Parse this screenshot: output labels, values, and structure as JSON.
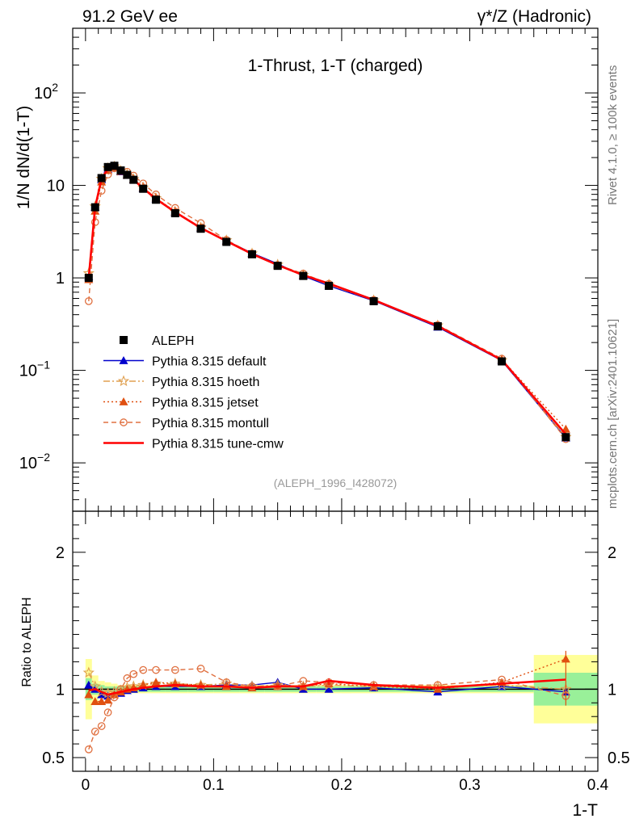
{
  "header": {
    "left": "91.2 GeV ee",
    "right": "γ*/Z (Hadronic)",
    "side_top": "Rivet 4.1.0, ≥ 100k events",
    "side_bottom": "mcplots.cern.ch [arXiv:2401.10621]"
  },
  "chart_data": {
    "type": "line",
    "title": "1-Thrust, 1-T (charged)",
    "analysis_id": "(ALEPH_1996_I428072)",
    "xlabel": "1-T",
    "ylabel": "1/N  dN/d(1-T)",
    "ratio_ylabel": "Ratio to ALEPH",
    "xlim": [
      -0.01,
      0.4
    ],
    "ylim": [
      0.003,
      500
    ],
    "yscale": "log",
    "ratio_ylim": [
      0.4,
      2.3
    ],
    "x_ticks": [
      "0",
      "0.1",
      "0.2",
      "0.3",
      "0.4"
    ],
    "ratio_ticks": [
      "0.5",
      "1",
      "2"
    ],
    "x": [
      0.0025,
      0.0075,
      0.0125,
      0.0175,
      0.0225,
      0.0275,
      0.0325,
      0.0375,
      0.045,
      0.055,
      0.07,
      0.09,
      0.11,
      0.13,
      0.15,
      0.17,
      0.19,
      0.225,
      0.275,
      0.325,
      0.375
    ],
    "data": {
      "name": "ALEPH",
      "values": [
        1.0,
        5.8,
        12.0,
        15.8,
        16.3,
        14.5,
        13.0,
        11.5,
        9.2,
        7.0,
        5.0,
        3.4,
        2.45,
        1.8,
        1.35,
        1.05,
        0.82,
        0.56,
        0.3,
        0.125,
        0.019
      ]
    },
    "series": [
      {
        "name": "Pythia 8.315 default",
        "color": "#0000cc",
        "style": "solid",
        "marker": "triangle",
        "ratio": [
          1.03,
          1.0,
          0.96,
          0.95,
          0.96,
          0.97,
          0.99,
          1.0,
          1.01,
          1.02,
          1.02,
          1.02,
          1.03,
          1.03,
          1.05,
          1.0,
          1.0,
          1.01,
          0.98,
          1.02,
          0.98
        ]
      },
      {
        "name": "Pythia 8.315 hoeth",
        "color": "#e0a050",
        "style": "dashdot",
        "marker": "star",
        "ratio": [
          1.12,
          1.02,
          0.98,
          0.97,
          0.98,
          0.99,
          1.01,
          1.02,
          1.03,
          1.04,
          1.04,
          1.03,
          1.04,
          1.02,
          1.03,
          1.02,
          1.03,
          1.02,
          1.02,
          1.03,
          1.0
        ]
      },
      {
        "name": "Pythia 8.315 jetset",
        "color": "#e05010",
        "style": "dotted",
        "marker": "triangle-filled",
        "ratio": [
          0.96,
          0.91,
          0.91,
          0.92,
          0.96,
          0.98,
          1.0,
          1.01,
          1.03,
          1.05,
          1.04,
          1.03,
          1.02,
          1.01,
          1.02,
          1.02,
          1.04,
          1.02,
          1.0,
          1.05,
          1.22
        ]
      },
      {
        "name": "Pythia 8.315 montull",
        "color": "#e07040",
        "style": "dashed",
        "marker": "circle-open",
        "ratio": [
          0.56,
          0.69,
          0.73,
          0.83,
          0.94,
          1.0,
          1.08,
          1.11,
          1.14,
          1.14,
          1.14,
          1.15,
          1.05,
          1.02,
          1.02,
          1.06,
          1.05,
          1.03,
          1.03,
          1.07,
          0.95
        ]
      },
      {
        "name": "Pythia 8.315 tune-cmw",
        "color": "#ff0000",
        "style": "solid-thick",
        "marker": "none",
        "ratio": [
          0.99,
          1.0,
          0.98,
          0.96,
          0.97,
          0.98,
          0.99,
          1.0,
          1.01,
          1.02,
          1.03,
          1.02,
          1.02,
          1.01,
          1.02,
          1.02,
          1.06,
          1.03,
          1.01,
          1.04,
          1.07
        ]
      }
    ],
    "ratio_bands": {
      "stat_syst_outer": [
        0.22,
        0.1,
        0.06,
        0.05,
        0.04,
        0.03,
        0.03,
        0.03,
        0.03,
        0.03,
        0.03,
        0.03,
        0.03,
        0.03,
        0.03,
        0.03,
        0.03,
        0.03,
        0.03,
        0.03,
        0.25
      ],
      "stat_inner": [
        0.08,
        0.04,
        0.03,
        0.02,
        0.02,
        0.02,
        0.02,
        0.02,
        0.02,
        0.02,
        0.02,
        0.02,
        0.02,
        0.02,
        0.02,
        0.02,
        0.02,
        0.02,
        0.02,
        0.02,
        0.12
      ]
    }
  }
}
